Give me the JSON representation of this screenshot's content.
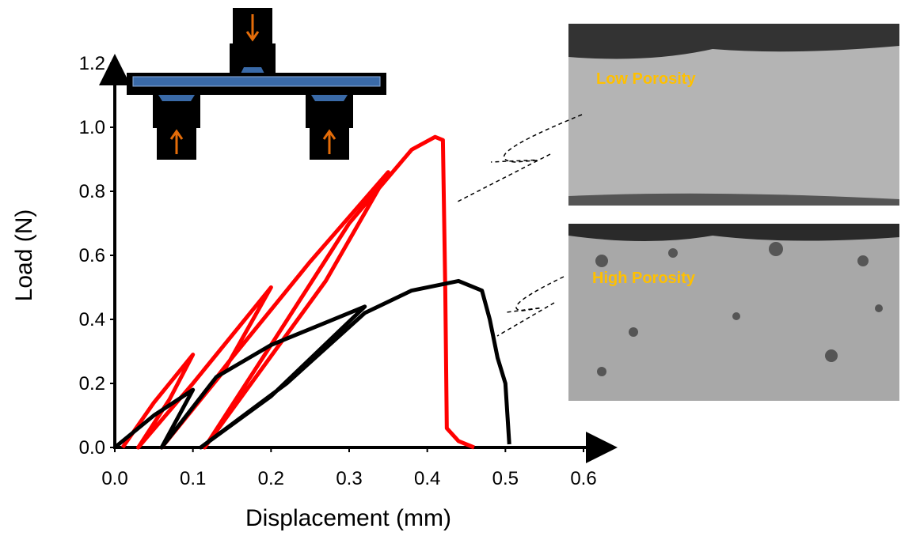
{
  "chart_data": {
    "type": "line",
    "x_label": "Displacement (mm)",
    "y_label": "Load (N)",
    "xlim": [
      0,
      0.6
    ],
    "ylim": [
      0,
      1.2
    ],
    "xticks": [
      {
        "value": 0,
        "label": "0.0"
      },
      0.1,
      0.2,
      0.3,
      0.4,
      0.5,
      0.6
    ],
    "yticks": [
      {
        "value": 0,
        "label": "0.0"
      },
      0.2,
      0.4,
      0.6,
      0.8,
      {
        "value": 1,
        "label": "1.0"
      },
      1.2
    ],
    "series": [
      {
        "color": "#ff0000",
        "x": [
          0.01,
          0.05,
          0.1,
          0.07,
          0.03,
          0.1,
          0.2,
          0.14,
          0.06,
          0.15,
          0.25,
          0.35,
          0.27,
          0.115,
          0.2,
          0.3,
          0.38,
          0.41,
          0.42,
          0.423,
          0.425,
          0.44,
          0.46
        ],
        "values": [
          0,
          0.14,
          0.29,
          0.15,
          0,
          0.2,
          0.5,
          0.24,
          0,
          0.28,
          0.58,
          0.86,
          0.52,
          0,
          0.32,
          0.7,
          0.93,
          0.97,
          0.96,
          0.5,
          0.06,
          0.02,
          0
        ]
      },
      {
        "color": "#000000",
        "x": [
          0,
          0.05,
          0.1,
          0.06,
          0.13,
          0.2,
          0.32,
          0.2,
          0.11,
          0.22,
          0.32,
          0.38,
          0.44,
          0.47,
          0.48,
          0.49,
          0.5,
          0.505
        ],
        "values": [
          0,
          0.1,
          0.18,
          0,
          0.22,
          0.32,
          0.44,
          0.16,
          0,
          0.2,
          0.42,
          0.49,
          0.52,
          0.49,
          0.4,
          0.28,
          0.2,
          0.01
        ]
      }
    ],
    "annotations": [
      "Low Porosity",
      "High Porosity"
    ]
  }
}
